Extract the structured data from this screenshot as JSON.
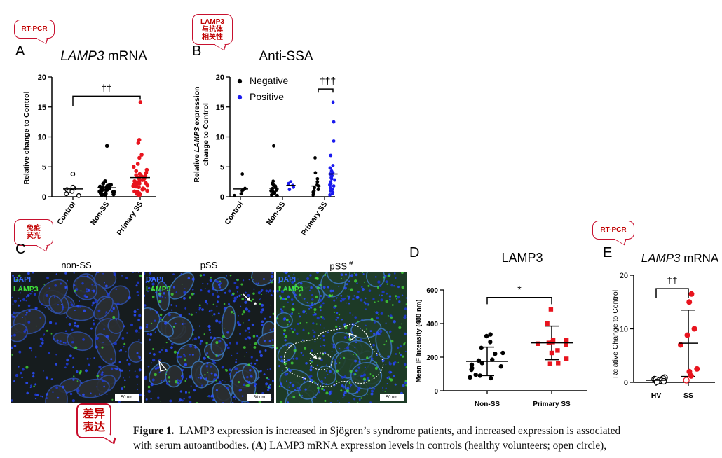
{
  "annotations": {
    "a": "RT-PCR",
    "b": "LAMP3\n与抗体\n相关性",
    "c": "免疫\n荧光",
    "e": "RT-PCR",
    "diff": "差异\n表达"
  },
  "panels": {
    "a": {
      "letter": "A"
    },
    "b": {
      "letter": "B"
    },
    "c": {
      "letter": "C"
    },
    "d": {
      "letter": "D"
    },
    "e": {
      "letter": "E"
    }
  },
  "micrographs": {
    "titles": [
      "non-SS",
      "pSS",
      "pSS"
    ],
    "hash": "#",
    "dapi": "DAPI",
    "lamp3": "LAMP3",
    "scale": "50 um",
    "star": "*"
  },
  "caption": {
    "figure_label": "Figure 1.",
    "line1": "LAMP3 expression is increased in Sjögren’s syndrome patients, and increased expression is associated",
    "line2_pre": "with serum autoantibodies. (",
    "line2_bold": "A",
    "line2_post": ") LAMP3 mRNA expression levels in controls (healthy volunteers; open circle),"
  },
  "colors": {
    "red": "#e8141e",
    "blue": "#1a1aee",
    "black": "#000000",
    "annotation": "#c00000"
  },
  "chart_data": [
    {
      "id": "a",
      "type": "scatter",
      "title_italic": "LAMP3",
      "title_rest": " mRNA",
      "ylabel": "Relative change to Control",
      "ylim": [
        0,
        20
      ],
      "yticks": [
        "0",
        "5",
        "10",
        "15",
        "20"
      ],
      "categories": [
        "Control",
        "Non-SS",
        "Primary SS"
      ],
      "significance": "††",
      "series": [
        {
          "category": "Control",
          "color": "#000000",
          "open": true,
          "mean": 1.3,
          "values": [
            3.8,
            1.4,
            1.2,
            1.0,
            0.9,
            1.6,
            0.5,
            0.2
          ]
        },
        {
          "category": "Non-SS",
          "color": "#000000",
          "open": false,
          "mean": 1.5,
          "values": [
            8.5,
            2.6,
            2.2,
            2.0,
            1.9,
            1.7,
            1.6,
            1.5,
            1.4,
            1.3,
            1.2,
            1.1,
            1.0,
            0.9,
            0.8,
            0.7,
            0.6,
            0.5,
            0.4,
            0.3,
            0.2,
            1.8,
            1.5,
            1.2,
            1.0,
            0.8,
            0.6,
            0.4
          ]
        },
        {
          "category": "Primary SS",
          "color": "#e8141e",
          "open": false,
          "mean": 3.2,
          "values": [
            15.8,
            9.5,
            9.0,
            7.0,
            6.5,
            5.5,
            5.0,
            4.5,
            4.3,
            4.0,
            3.8,
            3.6,
            3.4,
            3.2,
            3.0,
            2.8,
            2.6,
            2.4,
            2.2,
            2.0,
            1.8,
            1.6,
            1.4,
            1.2,
            1.0,
            0.8,
            0.6,
            0.4,
            0.2,
            3.5,
            2.9,
            2.5,
            2.1,
            1.7,
            1.3,
            0.9,
            0.5,
            3.1,
            2.3,
            1.9
          ]
        }
      ]
    },
    {
      "id": "b",
      "type": "scatter",
      "title": "Anti-SSA",
      "ylabel_pre": "Relative ",
      "ylabel_italic": "LAMP3",
      "ylabel_post": " expression",
      "ylabel2": "change to Control",
      "ylim": [
        0,
        20
      ],
      "yticks": [
        "0",
        "5",
        "10",
        "15",
        "20"
      ],
      "categories": [
        "Control",
        "Non-SS",
        "Primary SS"
      ],
      "significance": "†††",
      "legend": [
        {
          "label": "Negative",
          "color": "#000000"
        },
        {
          "label": "Positive",
          "color": "#1a1aee"
        }
      ],
      "series": [
        {
          "category": "Control",
          "color": "#000000",
          "offset": 0,
          "mean": 1.3,
          "values": [
            3.8,
            1.4,
            1.2,
            1.0,
            0.5,
            0.2
          ]
        },
        {
          "category": "Non-SS",
          "color": "#000000",
          "offset": -0.2,
          "mean": 1.4,
          "values": [
            8.5,
            2.6,
            2.2,
            2.0,
            1.8,
            1.6,
            1.4,
            1.2,
            1.0,
            0.8,
            0.6,
            0.5,
            0.3,
            0.2,
            1.9,
            1.1,
            0.7
          ]
        },
        {
          "category": "Non-SS",
          "color": "#1a1aee",
          "offset": 0.2,
          "mean": 1.9,
          "values": [
            2.5,
            2.2,
            1.9,
            1.6,
            1.2
          ]
        },
        {
          "category": "Primary SS",
          "color": "#000000",
          "offset": -0.2,
          "mean": 1.8,
          "values": [
            6.5,
            4.0,
            3.0,
            2.5,
            2.0,
            1.8,
            1.5,
            1.2,
            1.0,
            0.8,
            0.5,
            0.3
          ]
        },
        {
          "category": "Primary SS",
          "color": "#1a1aee",
          "offset": 0.2,
          "mean": 3.8,
          "values": [
            15.8,
            12.5,
            9.3,
            6.9,
            5.2,
            4.8,
            4.3,
            4.0,
            3.8,
            3.5,
            3.2,
            3.0,
            2.8,
            2.5,
            2.2,
            2.0,
            1.8,
            1.5,
            1.2,
            1.0,
            0.7,
            0.5,
            0.3
          ]
        }
      ]
    },
    {
      "id": "d",
      "type": "scatter",
      "title": "LAMP3",
      "ylabel": "Mean IF Intensity (488 nm)",
      "ylim": [
        0,
        600
      ],
      "yticks": [
        "0",
        "200",
        "400",
        "600"
      ],
      "categories": [
        "Non-SS",
        "Primary SS"
      ],
      "significance": "*",
      "series": [
        {
          "category": "Non-SS",
          "color": "#000000",
          "marker": "circle",
          "mean": 175,
          "sd": 85,
          "values": [
            335,
            325,
            290,
            255,
            225,
            220,
            185,
            180,
            165,
            155,
            145,
            135,
            125,
            95,
            90,
            80,
            75
          ]
        },
        {
          "category": "Primary SS",
          "color": "#e8141e",
          "marker": "square",
          "mean": 285,
          "sd": 100,
          "values": [
            485,
            400,
            300,
            300,
            290,
            285,
            280,
            275,
            240,
            225,
            190,
            165,
            160
          ]
        }
      ]
    },
    {
      "id": "e",
      "type": "scatter",
      "title_italic": "LAMP3",
      "title_rest": " mRNA",
      "ylabel": "Relative Change to Control",
      "ylim": [
        0,
        20
      ],
      "yticks": [
        "0",
        "10",
        "20"
      ],
      "categories": [
        "HV",
        "SS"
      ],
      "significance": "††",
      "series": [
        {
          "category": "HV",
          "color": "#000000",
          "open": true,
          "mean": 0.4,
          "values": [
            0.9,
            0.7,
            0.6,
            0.5,
            0.4,
            0.3,
            0.2,
            0.1
          ]
        },
        {
          "category": "SS",
          "color": "#e8141e",
          "mean": 7.3,
          "sd": 6.2,
          "values": [
            16.5,
            15.0,
            10.0,
            8.8,
            7.0,
            2.5,
            2.0,
            1.2,
            0.4
          ],
          "open_flags": [
            false,
            false,
            false,
            false,
            false,
            false,
            false,
            false,
            true
          ]
        }
      ]
    }
  ]
}
